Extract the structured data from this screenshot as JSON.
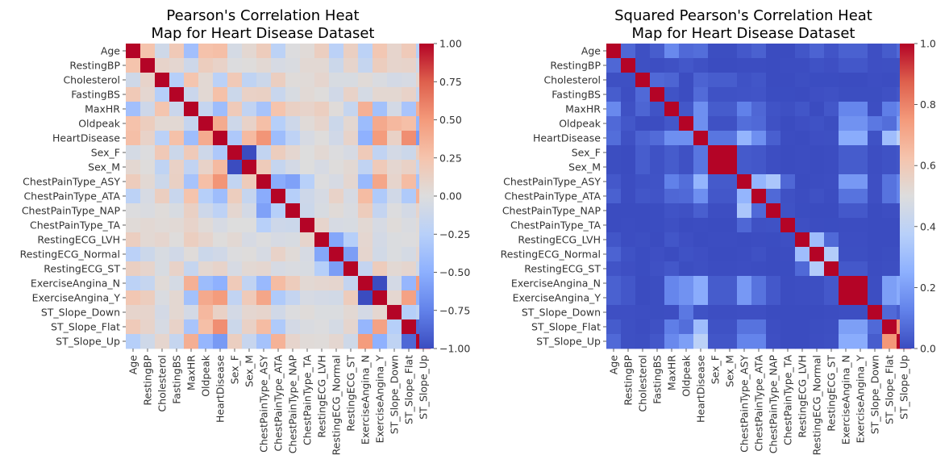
{
  "chart_data": [
    {
      "type": "heatmap",
      "title": "Pearson's Correlation Heat\nMap for Heart Disease Dataset",
      "labels": [
        "Age",
        "RestingBP",
        "Cholesterol",
        "FastingBS",
        "MaxHR",
        "Oldpeak",
        "HeartDisease",
        "Sex_F",
        "Sex_M",
        "ChestPainType_ASY",
        "ChestPainType_ATA",
        "ChestPainType_NAP",
        "ChestPainType_TA",
        "RestingECG_LVH",
        "RestingECG_Normal",
        "RestingECG_ST",
        "ExerciseAngina_N",
        "ExerciseAngina_Y",
        "ST_Slope_Down",
        "ST_Slope_Flat",
        "ST_Slope_Up"
      ],
      "colormap": "coolwarm",
      "vmin": -1.0,
      "vmax": 1.0,
      "colorbar_ticks": [
        "1.00",
        "0.75",
        "0.50",
        "0.25",
        "0.00",
        "−0.25",
        "−0.50",
        "−0.75",
        "−1.00"
      ],
      "colorbar_tick_values": [
        1.0,
        0.75,
        0.5,
        0.25,
        0.0,
        -0.25,
        -0.5,
        -0.75,
        -1.0
      ],
      "values": [
        [
          1.0,
          0.25,
          -0.1,
          0.2,
          -0.38,
          0.26,
          0.28,
          -0.06,
          0.06,
          0.17,
          -0.22,
          -0.01,
          0.03,
          0.15,
          -0.23,
          0.14,
          -0.22,
          0.22,
          0.09,
          0.19,
          -0.26
        ],
        [
          0.25,
          1.0,
          0.1,
          0.07,
          -0.11,
          0.16,
          0.11,
          -0.01,
          0.01,
          0.05,
          -0.05,
          -0.03,
          0.05,
          0.05,
          -0.12,
          0.09,
          -0.16,
          0.16,
          0.09,
          0.1,
          -0.1
        ],
        [
          -0.1,
          0.1,
          1.0,
          -0.26,
          0.24,
          0.05,
          -0.23,
          0.2,
          -0.2,
          -0.12,
          0.15,
          0.02,
          0.03,
          0.08,
          -0.04,
          -0.04,
          0.03,
          -0.03,
          -0.07,
          -0.05,
          0.08
        ],
        [
          0.2,
          0.07,
          -0.26,
          1.0,
          -0.13,
          0.05,
          0.27,
          -0.12,
          0.12,
          0.13,
          -0.14,
          -0.04,
          0.04,
          0.01,
          -0.09,
          0.11,
          -0.06,
          0.06,
          0.06,
          0.11,
          -0.16
        ],
        [
          -0.38,
          -0.11,
          0.24,
          -0.13,
          1.0,
          -0.16,
          -0.4,
          0.19,
          -0.19,
          -0.35,
          0.25,
          0.13,
          0.1,
          0.15,
          0.02,
          -0.16,
          0.37,
          -0.37,
          -0.07,
          -0.34,
          0.38
        ],
        [
          0.26,
          0.16,
          0.05,
          0.05,
          -0.16,
          1.0,
          0.4,
          -0.11,
          0.11,
          0.28,
          -0.26,
          -0.11,
          0.03,
          0.09,
          -0.12,
          0.06,
          -0.41,
          0.41,
          0.32,
          0.28,
          -0.45
        ],
        [
          0.28,
          0.11,
          -0.23,
          0.27,
          -0.4,
          0.4,
          1.0,
          -0.31,
          0.31,
          0.52,
          -0.4,
          -0.21,
          -0.05,
          0.01,
          -0.09,
          0.1,
          -0.49,
          0.49,
          0.12,
          0.55,
          -0.62
        ],
        [
          -0.06,
          -0.01,
          0.2,
          -0.12,
          0.19,
          -0.11,
          -0.31,
          1.0,
          -1.0,
          -0.18,
          0.16,
          0.07,
          0.0,
          0.05,
          -0.01,
          -0.05,
          0.19,
          -0.19,
          -0.07,
          -0.12,
          0.15
        ],
        [
          0.06,
          0.01,
          -0.2,
          0.12,
          -0.19,
          0.11,
          0.31,
          -1.0,
          1.0,
          0.18,
          -0.16,
          -0.07,
          0.0,
          -0.05,
          0.01,
          0.05,
          -0.19,
          0.19,
          0.07,
          0.12,
          -0.15
        ],
        [
          0.17,
          0.05,
          -0.12,
          0.13,
          -0.35,
          0.28,
          0.52,
          -0.18,
          0.18,
          1.0,
          -0.52,
          -0.58,
          -0.25,
          -0.01,
          -0.05,
          0.07,
          -0.43,
          0.43,
          0.09,
          0.3,
          -0.36
        ],
        [
          -0.22,
          -0.05,
          0.15,
          -0.14,
          0.25,
          -0.26,
          -0.4,
          0.16,
          -0.16,
          -0.52,
          1.0,
          -0.26,
          -0.11,
          -0.05,
          0.11,
          -0.05,
          0.3,
          -0.3,
          -0.09,
          -0.3,
          0.36
        ],
        [
          -0.01,
          -0.03,
          0.02,
          -0.04,
          0.13,
          -0.11,
          -0.21,
          0.07,
          -0.07,
          -0.58,
          -0.26,
          1.0,
          -0.12,
          -0.04,
          0.03,
          -0.03,
          0.17,
          -0.17,
          -0.01,
          -0.07,
          0.09
        ],
        [
          0.03,
          0.05,
          0.03,
          0.04,
          0.1,
          0.03,
          -0.05,
          0.0,
          0.0,
          -0.25,
          -0.11,
          -0.12,
          1.0,
          0.09,
          -0.05,
          -0.04,
          0.05,
          -0.05,
          0.02,
          -0.03,
          0.03
        ],
        [
          0.15,
          0.05,
          0.08,
          0.01,
          0.15,
          0.09,
          0.01,
          0.05,
          -0.05,
          -0.01,
          -0.05,
          -0.04,
          0.09,
          1.0,
          -0.55,
          -0.26,
          0.07,
          -0.07,
          -0.02,
          -0.01,
          0.02
        ],
        [
          -0.23,
          -0.12,
          -0.04,
          -0.09,
          0.02,
          -0.12,
          -0.09,
          -0.01,
          0.01,
          -0.05,
          0.11,
          0.03,
          -0.05,
          -0.55,
          1.0,
          -0.6,
          0.08,
          -0.08,
          -0.02,
          -0.06,
          0.07
        ],
        [
          0.14,
          0.09,
          -0.04,
          0.11,
          -0.16,
          0.06,
          0.1,
          -0.05,
          0.05,
          0.07,
          -0.05,
          -0.03,
          -0.04,
          -0.26,
          -0.6,
          1.0,
          -0.17,
          0.17,
          0.05,
          0.08,
          -0.1
        ],
        [
          -0.22,
          -0.16,
          0.03,
          -0.06,
          0.37,
          -0.41,
          -0.49,
          0.19,
          -0.19,
          -0.43,
          0.3,
          0.17,
          0.05,
          0.07,
          0.08,
          -0.17,
          1.0,
          -1.0,
          -0.07,
          -0.45,
          0.49
        ],
        [
          0.22,
          0.16,
          -0.03,
          0.06,
          -0.37,
          0.41,
          0.49,
          -0.19,
          0.19,
          0.43,
          -0.3,
          -0.17,
          -0.05,
          -0.07,
          -0.08,
          0.17,
          -1.0,
          1.0,
          0.07,
          0.45,
          -0.49
        ],
        [
          0.09,
          0.09,
          -0.07,
          0.06,
          -0.07,
          0.32,
          0.12,
          -0.07,
          0.07,
          0.09,
          -0.09,
          -0.01,
          0.02,
          -0.02,
          -0.02,
          0.05,
          -0.07,
          0.07,
          1.0,
          -0.26,
          -0.2
        ],
        [
          0.19,
          0.1,
          -0.05,
          0.11,
          -0.34,
          0.28,
          0.55,
          -0.12,
          0.12,
          0.3,
          -0.3,
          -0.07,
          -0.03,
          -0.01,
          -0.06,
          0.08,
          -0.45,
          0.45,
          -0.26,
          1.0,
          -0.87
        ],
        [
          -0.26,
          -0.1,
          0.08,
          -0.16,
          0.38,
          -0.45,
          -0.62,
          0.15,
          -0.15,
          -0.36,
          0.36,
          0.09,
          0.03,
          0.02,
          0.07,
          -0.1,
          0.49,
          -0.49,
          -0.2,
          -0.87,
          1.0
        ]
      ]
    },
    {
      "type": "heatmap",
      "title": "Squared Pearson's Correlation Heat\nMap for Heart Disease Dataset",
      "labels": [
        "Age",
        "RestingBP",
        "Cholesterol",
        "FastingBS",
        "MaxHR",
        "Oldpeak",
        "HeartDisease",
        "Sex_F",
        "Sex_M",
        "ChestPainType_ASY",
        "ChestPainType_ATA",
        "ChestPainType_NAP",
        "ChestPainType_TA",
        "RestingECG_LVH",
        "RestingECG_Normal",
        "RestingECG_ST",
        "ExerciseAngina_N",
        "ExerciseAngina_Y",
        "ST_Slope_Down",
        "ST_Slope_Flat",
        "ST_Slope_Up"
      ],
      "colormap": "coolwarm",
      "derived_from": "square of first heatmap",
      "vmin": 0.0,
      "vmax": 1.0,
      "colorbar_ticks": [
        "1.0",
        "0.8",
        "0.6",
        "0.4",
        "0.2",
        "0.0"
      ],
      "colorbar_tick_values": [
        1.0,
        0.8,
        0.6,
        0.4,
        0.2,
        0.0
      ]
    }
  ]
}
